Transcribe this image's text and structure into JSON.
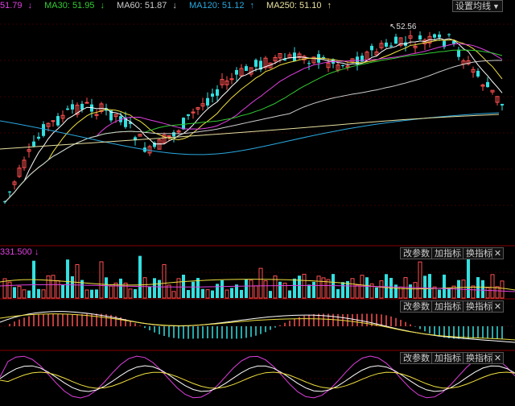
{
  "ma_bar": {
    "items": [
      {
        "label": "51.79",
        "arrow": "↓",
        "color": "#e040e0"
      },
      {
        "label": "MA30: 51.95",
        "arrow": "↓",
        "color": "#33cc33"
      },
      {
        "label": "MA60: 51.87",
        "arrow": "↓",
        "color": "#cccccc"
      },
      {
        "label": "MA120: 51.12",
        "arrow": "↑",
        "color": "#2aa8e0"
      },
      {
        "label": "MA250: 51.10",
        "arrow": "↑",
        "color": "#e8e0a0"
      }
    ],
    "settings_label": "设置均线"
  },
  "price_marker": "52.56",
  "volume_panel": {
    "label": "331.500",
    "arrow": "↓",
    "buttons": [
      "改参数",
      "加指标",
      "换指标"
    ],
    "close": "✕"
  },
  "macd_panel": {
    "buttons": [
      "改参数",
      "加指标",
      "换指标"
    ],
    "close": "✕"
  },
  "kdj_panel": {
    "buttons": [
      "改参数",
      "加指标",
      "换指标"
    ],
    "close": "✕"
  },
  "colors": {
    "up": "#ff5050",
    "down": "#33e0e0",
    "ma5": "#ffffff",
    "ma10": "#f0e040",
    "ma20": "#e040e0",
    "ma30": "#33cc33",
    "ma60": "#cccccc",
    "ma120": "#2aa8e0",
    "ma250": "#e8e0a0"
  }
}
